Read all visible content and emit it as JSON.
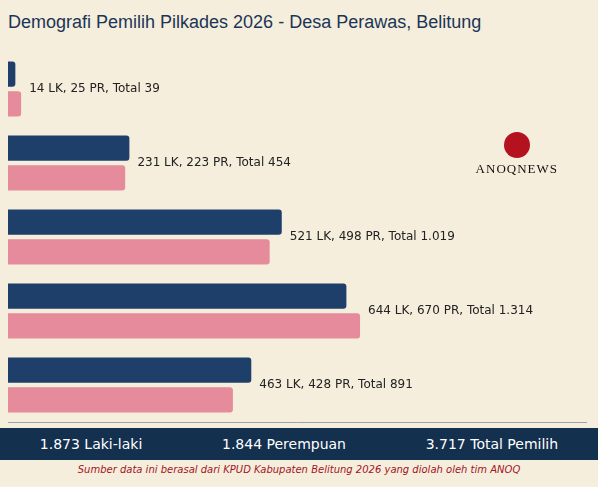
{
  "chart_data": {
    "type": "bar",
    "orientation": "horizontal",
    "title": "Demografi Pemilih Pilkades 2026 - Desa Perawas, Belitung",
    "categories": [
      null,
      null,
      null,
      null,
      null
    ],
    "series": [
      {
        "name": "LK",
        "color": "#1f3f6b",
        "values": [
          14,
          231,
          521,
          644,
          463
        ]
      },
      {
        "name": "PR",
        "color": "#e58b9c",
        "values": [
          25,
          223,
          498,
          670,
          428
        ]
      }
    ],
    "annotations": [
      "14 LK, 25 PR, Total 39",
      "231 LK, 223 PR, Total 454",
      "521 LK, 498 PR, Total 1.019",
      "644 LK, 670 PR, Total 1.314",
      "463 LK, 428 PR, Total 891"
    ],
    "xlim": [
      0,
      1100
    ],
    "xticks": [
      0,
      1100
    ],
    "tick_labels": false,
    "grid": false
  },
  "logo": "ANOQNEWS",
  "summary": [
    "1.873 Laki-laki",
    "1.844 Perempuan",
    "3.717 Total Pemilih"
  ],
  "source": "Sumber data ini berasal dari KPUD Kabupaten Belitung 2026 yang diolah oleh tim ANOQ"
}
